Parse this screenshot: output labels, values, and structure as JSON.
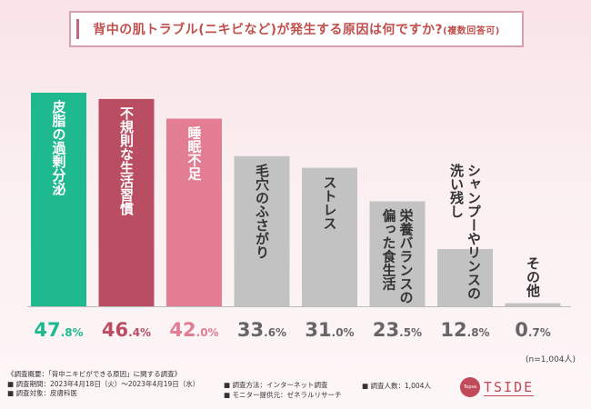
{
  "title": {
    "main": "背中の肌トラブル(ニキビなど)が発生する原因は何ですか?",
    "sub": "(複数回答可)"
  },
  "chart_data": {
    "type": "bar",
    "title": "背中の肌トラブル(ニキビなど)が発生する原因は何ですか?(複数回答可)",
    "unit": "%",
    "ylim": [
      0,
      50
    ],
    "categories": [
      "皮脂の過剰分泌",
      "不規則な生活習慣",
      "睡眠不足",
      "毛穴のふさがり",
      "ストレス",
      "栄養バランスの偏った食生活",
      "シャンプーやリンスの洗い残し",
      "その他"
    ],
    "label_lines": [
      [
        "皮脂の過剰分泌"
      ],
      [
        "不規則な生活習慣"
      ],
      [
        "睡眠不足"
      ],
      [
        "毛穴のふさがり"
      ],
      [
        "ストレス"
      ],
      [
        "栄養バランスの",
        "偏った食生活"
      ],
      [
        "シャンプーやリンスの",
        "洗い残し"
      ],
      [
        "その他"
      ]
    ],
    "values": [
      47.8,
      46.4,
      42.0,
      33.6,
      31.0,
      23.5,
      12.8,
      0.7
    ],
    "value_labels": [
      [
        "47",
        ".8%"
      ],
      [
        "46",
        ".4%"
      ],
      [
        "42",
        ".0%"
      ],
      [
        "33",
        ".6%"
      ],
      [
        "31",
        ".0%"
      ],
      [
        "23",
        ".5%"
      ],
      [
        "12",
        ".8%"
      ],
      [
        "0",
        ".7%"
      ]
    ],
    "bar_colors": [
      "#1fb990",
      "#b94e63",
      "#e27d93",
      "#c2c2c2",
      "#c2c2c2",
      "#c2c2c2",
      "#c2c2c2",
      "#c2c2c2"
    ],
    "value_colors": [
      "#1fb990",
      "#b94e63",
      "#e27d93",
      "#666666",
      "#666666",
      "#666666",
      "#666666",
      "#666666"
    ],
    "label_colors": [
      "#ffffff",
      "#ffffff",
      "#ffffff",
      "#333333",
      "#333333",
      "#333333",
      "#333333",
      "#333333"
    ]
  },
  "n_note": "(n=1,004人)",
  "footer": {
    "overview": "《調査概要：「背中ニキビができる原因」に関する調査》",
    "period": "■ 調査期間：2023年4月18日（火）〜2023年4月19日（水）",
    "target": "■ 調査対象：皮膚科医",
    "method": "■ 調査方法：インターネット調査",
    "provider": "■ モニター提供元：ゼネラルリサーチ",
    "count": "■ 調査人数：1,004人"
  },
  "logo": {
    "badge": "Tepsa",
    "word": "TSIDE"
  }
}
